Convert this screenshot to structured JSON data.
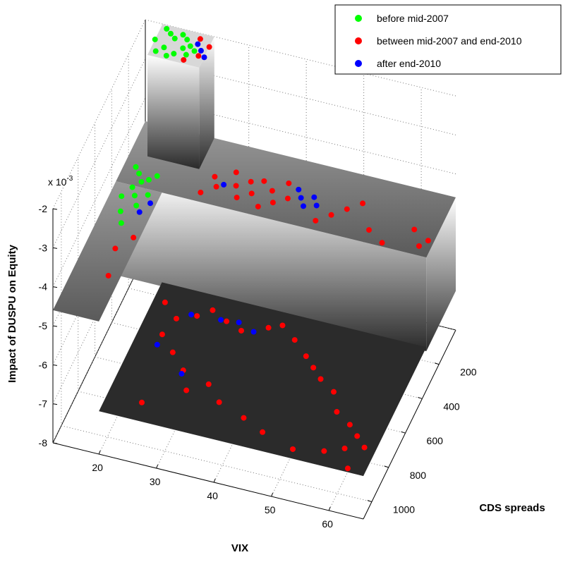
{
  "chart_data": {
    "type": "scatter3d",
    "xlabel": "VIX",
    "ylabel": "CDS spreads",
    "zlabel": "Impact of DUSPU on Equity",
    "z_multiplier": "x 10",
    "z_exponent": -3,
    "xlim": [
      12,
      66
    ],
    "ylim": [
      0,
      1100
    ],
    "zlim": [
      -8,
      -2
    ],
    "xticks": [
      20,
      30,
      40,
      50,
      60
    ],
    "yticks": [
      200,
      400,
      600,
      800,
      1000
    ],
    "zticks": [
      -2,
      -3,
      -4,
      -5,
      -6,
      -7,
      -8
    ],
    "grid": true,
    "legend": "upper right",
    "surface": [
      {
        "x": [
          12,
          66
        ],
        "y": [
          0,
          350
        ],
        "z": -4.6,
        "base": -7
      },
      {
        "x": [
          20,
          66
        ],
        "y": [
          350,
          1100
        ],
        "z": -6.9,
        "base": -6.9
      },
      {
        "x": [
          12,
          20
        ],
        "y": [
          350,
          1100
        ],
        "z": -4.6,
        "base": -4.6
      },
      {
        "x": [
          15,
          24
        ],
        "y": [
          0,
          180
        ],
        "z": -2,
        "base": -4.6
      }
    ],
    "series": [
      {
        "name": "before mid-2007",
        "color": "#00ff00",
        "x": [
          16,
          17,
          18,
          19,
          20,
          21,
          22,
          17,
          19,
          21,
          16,
          18,
          20,
          15,
          14,
          15,
          16,
          17,
          18,
          15,
          16,
          17,
          14,
          15,
          16,
          18
        ],
        "y": [
          20,
          40,
          60,
          30,
          50,
          80,
          100,
          120,
          140,
          130,
          150,
          160,
          100,
          90,
          250,
          280,
          320,
          300,
          270,
          360,
          400,
          450,
          420,
          500,
          560,
          380
        ],
        "z": [
          -2,
          -2,
          -2,
          -2,
          -2,
          -2,
          -2,
          -2,
          -2,
          -2,
          -2,
          -2,
          -2,
          -2,
          -4.6,
          -4.6,
          -4.6,
          -4.6,
          -4.6,
          -4.6,
          -4.6,
          -4.6,
          -4.6,
          -4.6,
          -4.6,
          -4.6
        ]
      },
      {
        "name": "between mid-2007 and end-2010",
        "color": "#ff0000",
        "x": [
          22,
          23,
          21,
          24,
          26,
          27,
          28,
          30,
          31,
          32,
          33,
          34,
          35,
          36,
          37,
          38,
          39,
          40,
          46,
          48,
          50,
          52,
          55,
          58,
          62,
          64,
          65,
          17,
          18,
          19,
          22,
          25,
          28,
          30,
          33,
          36,
          40,
          42,
          45,
          48,
          50,
          52,
          55,
          57,
          60,
          62,
          64,
          24,
          27,
          30,
          35,
          38,
          43,
          47,
          53,
          58,
          61,
          63,
          26,
          32
        ],
        "y": [
          30,
          120,
          160,
          60,
          300,
          200,
          250,
          150,
          220,
          280,
          180,
          240,
          160,
          300,
          200,
          260,
          140,
          220,
          300,
          250,
          200,
          150,
          280,
          330,
          220,
          300,
          260,
          700,
          850,
          620,
          450,
          520,
          480,
          430,
          470,
          500,
          450,
          420,
          480,
          550,
          600,
          650,
          700,
          800,
          850,
          900,
          950,
          620,
          700,
          780,
          820,
          900,
          950,
          1000,
          1050,
          1020,
          980,
          1080,
          1000,
          880
        ],
        "z": [
          -2,
          -2,
          -2,
          -2,
          -4.6,
          -4.6,
          -4.6,
          -4.6,
          -4.6,
          -4.6,
          -4.6,
          -4.6,
          -4.6,
          -4.6,
          -4.6,
          -4.6,
          -4.6,
          -4.6,
          -4.6,
          -4.6,
          -4.6,
          -4.6,
          -4.6,
          -4.6,
          -4.6,
          -4.6,
          -4.6,
          -4.6,
          -4.6,
          -4.6,
          -6.9,
          -6.9,
          -6.9,
          -6.9,
          -6.9,
          -6.9,
          -6.9,
          -6.9,
          -6.9,
          -6.9,
          -6.9,
          -6.9,
          -6.9,
          -6.9,
          -6.9,
          -6.9,
          -6.9,
          -6.9,
          -6.9,
          -6.9,
          -6.9,
          -6.9,
          -6.9,
          -6.9,
          -6.9,
          -6.9,
          -6.9,
          -6.9,
          -6.9,
          -6.9
        ]
      },
      {
        "name": "after end-2010",
        "color": "#0000ff",
        "x": [
          22,
          23,
          24,
          29,
          41,
          42,
          43,
          44,
          45,
          19,
          18,
          27,
          32,
          35,
          38,
          30,
          24
        ],
        "y": [
          60,
          90,
          120,
          230,
          160,
          200,
          240,
          180,
          220,
          420,
          480,
          480,
          470,
          460,
          490,
          800,
          680
        ],
        "z": [
          -2,
          -2,
          -2,
          -4.6,
          -4.6,
          -4.6,
          -4.6,
          -4.6,
          -4.6,
          -4.6,
          -4.6,
          -6.9,
          -6.9,
          -6.9,
          -6.9,
          -6.9,
          -6.9
        ]
      }
    ]
  }
}
